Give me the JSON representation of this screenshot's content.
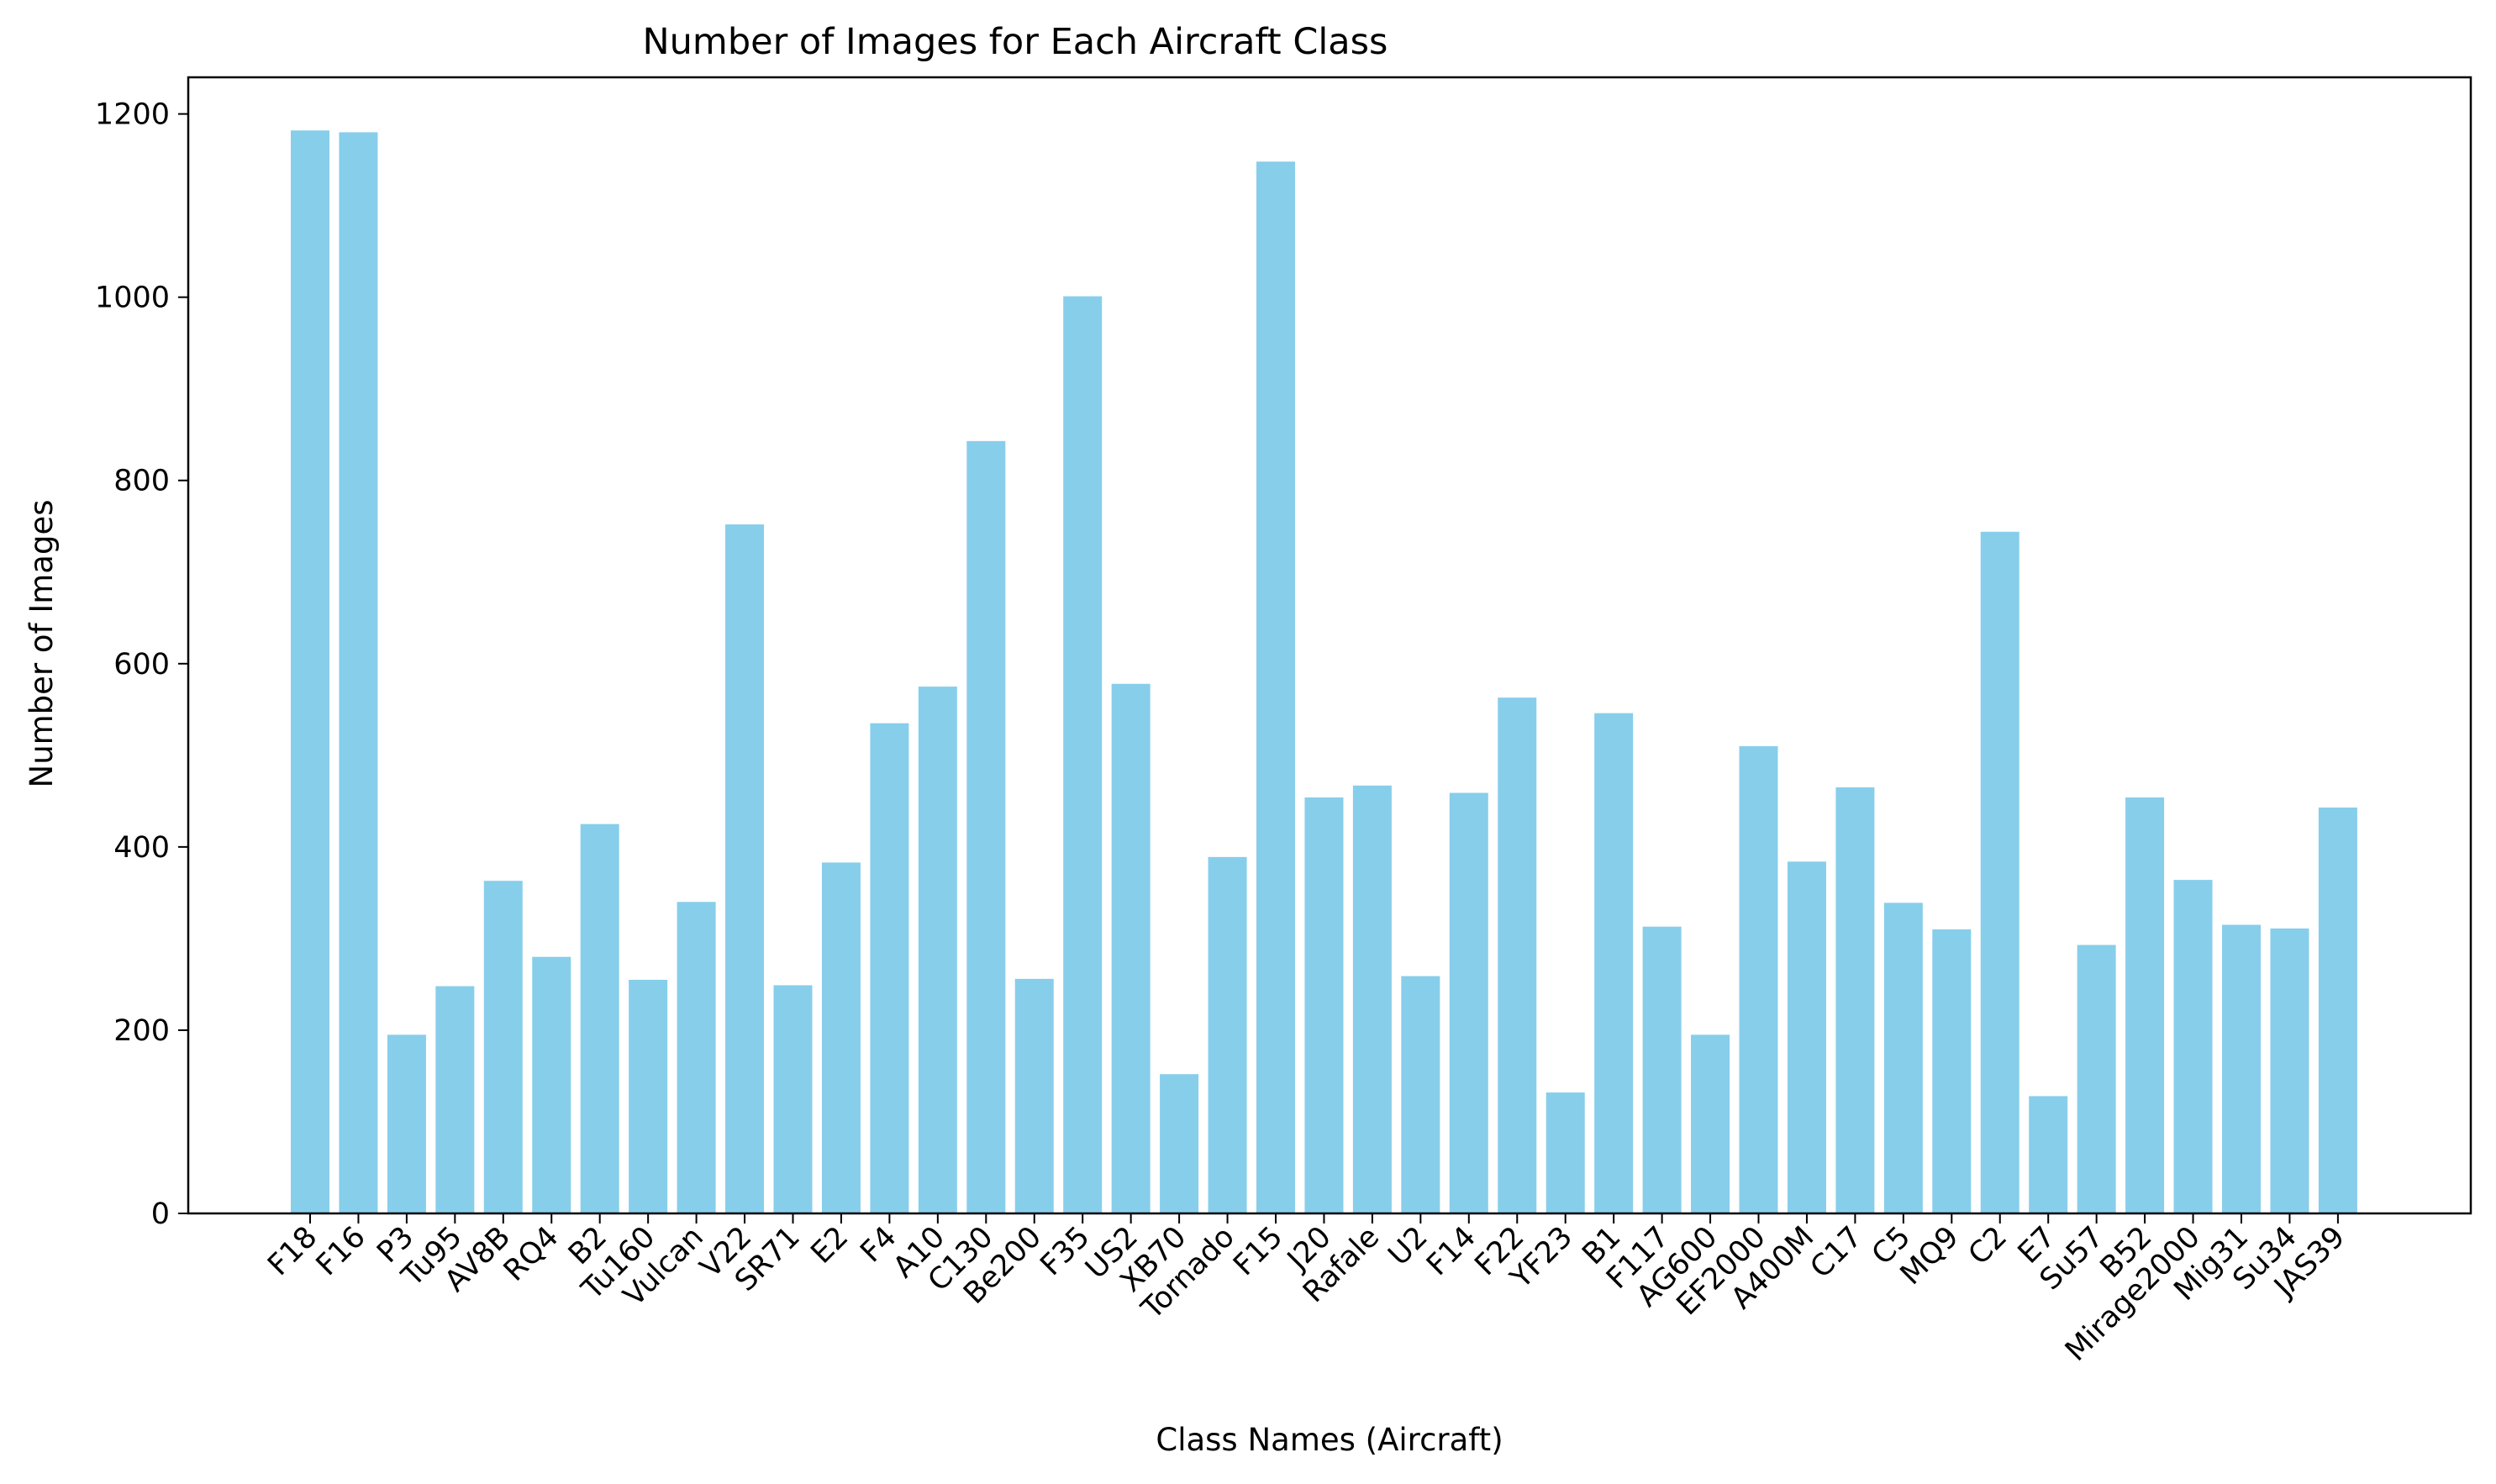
{
  "chart_data": {
    "type": "bar",
    "title": "Number of Images for Each Aircraft Class",
    "xlabel": "Class Names (Aircraft)",
    "ylabel": "Number of Images",
    "ylim": [
      0,
      1240
    ],
    "yticks": [
      0,
      200,
      400,
      600,
      800,
      1000,
      1200
    ],
    "grid": false,
    "bar_color": "#87CEEB",
    "categories": [
      "F18",
      "F16",
      "P3",
      "Tu95",
      "AV8B",
      "RQ4",
      "B2",
      "Tu160",
      "Vulcan",
      "V22",
      "SR71",
      "E2",
      "F4",
      "A10",
      "C130",
      "Be200",
      "F35",
      "US2",
      "XB70",
      "Tornado",
      "F15",
      "J20",
      "Rafale",
      "U2",
      "F14",
      "F22",
      "YF23",
      "B1",
      "F117",
      "AG600",
      "EF2000",
      "A400M",
      "C17",
      "C5",
      "MQ9",
      "C2",
      "E7",
      "Su57",
      "B52",
      "Mirage2000",
      "Mig31",
      "Su34",
      "JAS39"
    ],
    "values": [
      1182,
      1180,
      195,
      248,
      363,
      280,
      425,
      255,
      340,
      752,
      249,
      383,
      535,
      575,
      843,
      256,
      1001,
      578,
      152,
      389,
      1148,
      454,
      467,
      259,
      459,
      563,
      132,
      546,
      313,
      195,
      510,
      384,
      465,
      339,
      310,
      744,
      128,
      293,
      454,
      364,
      315,
      311,
      443
    ]
  }
}
